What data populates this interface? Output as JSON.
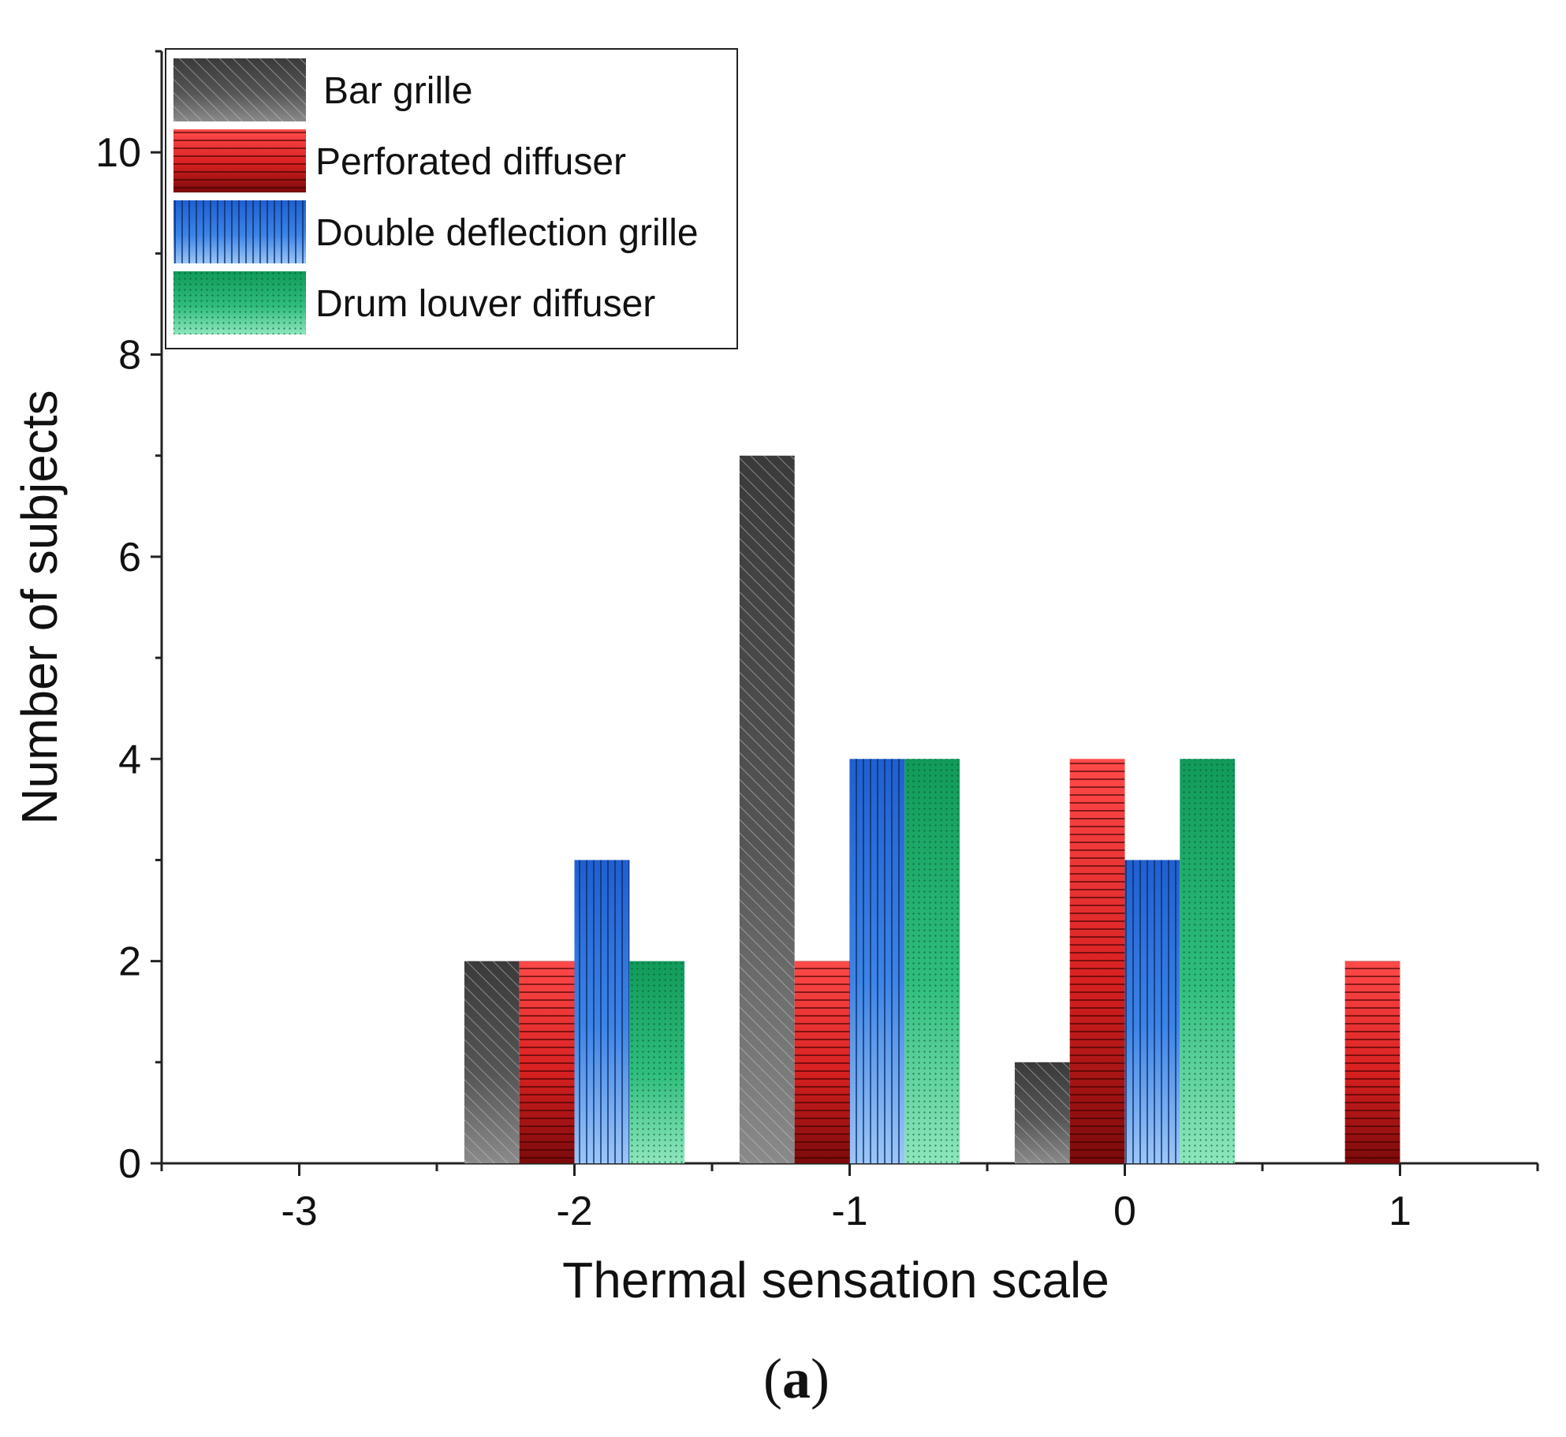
{
  "chart_data": {
    "type": "bar",
    "title": "",
    "xlabel": "Thermal sensation scale",
    "ylabel": "Number of subjects",
    "categories": [
      "-3",
      "-2",
      "-1",
      "0",
      "1"
    ],
    "x": [
      -3,
      -2,
      -1,
      0,
      1
    ],
    "xlim": [
      -3.5,
      1.5
    ],
    "ylim": [
      0,
      11
    ],
    "yticks": [
      0,
      2,
      4,
      6,
      8,
      10
    ],
    "legend_position": "top-left",
    "series": [
      {
        "name": "Bar grille",
        "values": [
          0,
          2,
          7,
          1,
          0
        ],
        "color": "#4a4a4a",
        "pattern": "diagonal"
      },
      {
        "name": "Perforated diffuser",
        "values": [
          0,
          2,
          2,
          4,
          2
        ],
        "color": "#e03030",
        "pattern": "horizontal"
      },
      {
        "name": "Double deflection grille",
        "values": [
          0,
          3,
          4,
          3,
          0
        ],
        "color": "#2e6fd6",
        "pattern": "vertical"
      },
      {
        "name": "Drum louver diffuser",
        "values": [
          0,
          2,
          4,
          4,
          0
        ],
        "color": "#1fa46a",
        "pattern": "dots"
      }
    ]
  },
  "caption": {
    "open": "(",
    "letter": "a",
    "close": ")"
  }
}
